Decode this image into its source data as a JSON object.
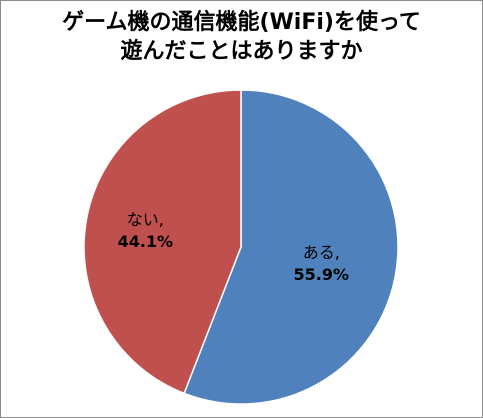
{
  "chart_data": {
    "type": "pie",
    "title_lines": [
      "ゲーム機の通信機能(WiFi)を使って",
      "遊んだことはありますか"
    ],
    "slices": [
      {
        "label": "ある,",
        "value": 55.9,
        "value_text": "55.9%",
        "color": "#4f81bd"
      },
      {
        "label": "ない,",
        "value": 44.1,
        "value_text": "44.1%",
        "color": "#c0504d"
      }
    ],
    "start": "12 o'clock",
    "direction": "clockwise",
    "legend": "none"
  }
}
